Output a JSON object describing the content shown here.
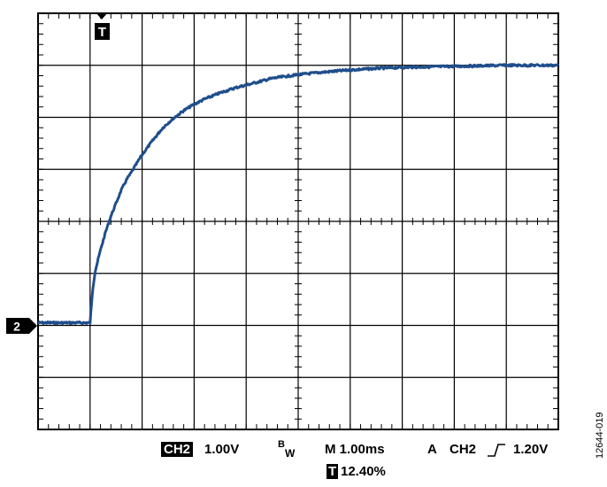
{
  "chart_data": {
    "type": "line",
    "title": "",
    "xlabel": "",
    "ylabel": "",
    "grid": true,
    "divisions": {
      "x": 10,
      "y": 8
    },
    "xlim": [
      -1.0,
      9.0
    ],
    "ylim": [
      -4.0,
      4.0
    ],
    "units": {
      "x": "ms",
      "y": "V"
    },
    "series": [
      {
        "name": "",
        "color": "#1f4e8c",
        "x": [
          -1.0,
          -0.5,
          0.0,
          0.02,
          0.05,
          0.1,
          0.2,
          0.3,
          0.4,
          0.5,
          0.6,
          0.7,
          0.8,
          0.9,
          1.0,
          1.2,
          1.4,
          1.6,
          1.8,
          2.0,
          2.2,
          2.5,
          2.8,
          3.0,
          3.5,
          4.0,
          4.5,
          5.0,
          5.5,
          6.0,
          6.5,
          7.0,
          7.5,
          8.0,
          8.5,
          9.0
        ],
        "y": [
          -1.95,
          -1.95,
          -1.95,
          -1.7,
          -1.3,
          -0.95,
          -0.55,
          -0.2,
          0.1,
          0.35,
          0.6,
          0.8,
          0.95,
          1.12,
          1.28,
          1.55,
          1.8,
          1.98,
          2.13,
          2.25,
          2.35,
          2.47,
          2.57,
          2.62,
          2.75,
          2.82,
          2.87,
          2.91,
          2.94,
          2.96,
          2.97,
          2.98,
          2.99,
          3.0,
          3.0,
          3.0
        ]
      }
    ]
  },
  "markers": {
    "trigger": "T",
    "channel": "2"
  },
  "status": {
    "channel_box": "CH2",
    "volts_div": "1.00V",
    "bandwidth_main": "B",
    "bandwidth_sub": "W",
    "timebase": "M 1.00ms",
    "trigger_mode": "A",
    "trigger_channel": "CH2",
    "trigger_slope_icon": "rising-edge-icon",
    "trigger_level": "1.20V",
    "trigger_box": "T",
    "trigger_position": "12.40%"
  },
  "figure_id": "12644-019"
}
